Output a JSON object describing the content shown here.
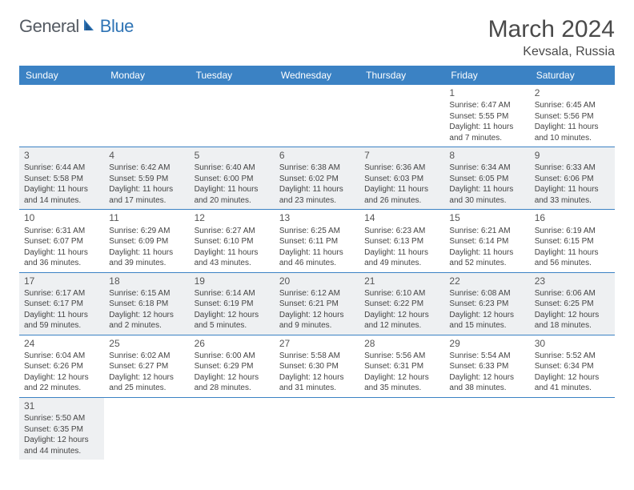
{
  "logo": {
    "word1": "General",
    "word2": "Blue"
  },
  "title": "March 2024",
  "location": "Kevsala, Russia",
  "colors": {
    "header_bg": "#3b82c4",
    "header_text": "#ffffff",
    "shade_bg": "#eef0f2",
    "row_border": "#3b82c4",
    "logo_gray": "#555b63",
    "logo_blue": "#2f74b5",
    "page_bg": "#ffffff"
  },
  "weekdays": [
    "Sunday",
    "Monday",
    "Tuesday",
    "Wednesday",
    "Thursday",
    "Friday",
    "Saturday"
  ],
  "weeks": [
    {
      "shade": false,
      "days": [
        null,
        null,
        null,
        null,
        null,
        {
          "n": "1",
          "sr": "Sunrise: 6:47 AM",
          "ss": "Sunset: 5:55 PM",
          "d1": "Daylight: 11 hours",
          "d2": "and 7 minutes."
        },
        {
          "n": "2",
          "sr": "Sunrise: 6:45 AM",
          "ss": "Sunset: 5:56 PM",
          "d1": "Daylight: 11 hours",
          "d2": "and 10 minutes."
        }
      ]
    },
    {
      "shade": true,
      "days": [
        {
          "n": "3",
          "sr": "Sunrise: 6:44 AM",
          "ss": "Sunset: 5:58 PM",
          "d1": "Daylight: 11 hours",
          "d2": "and 14 minutes."
        },
        {
          "n": "4",
          "sr": "Sunrise: 6:42 AM",
          "ss": "Sunset: 5:59 PM",
          "d1": "Daylight: 11 hours",
          "d2": "and 17 minutes."
        },
        {
          "n": "5",
          "sr": "Sunrise: 6:40 AM",
          "ss": "Sunset: 6:00 PM",
          "d1": "Daylight: 11 hours",
          "d2": "and 20 minutes."
        },
        {
          "n": "6",
          "sr": "Sunrise: 6:38 AM",
          "ss": "Sunset: 6:02 PM",
          "d1": "Daylight: 11 hours",
          "d2": "and 23 minutes."
        },
        {
          "n": "7",
          "sr": "Sunrise: 6:36 AM",
          "ss": "Sunset: 6:03 PM",
          "d1": "Daylight: 11 hours",
          "d2": "and 26 minutes."
        },
        {
          "n": "8",
          "sr": "Sunrise: 6:34 AM",
          "ss": "Sunset: 6:05 PM",
          "d1": "Daylight: 11 hours",
          "d2": "and 30 minutes."
        },
        {
          "n": "9",
          "sr": "Sunrise: 6:33 AM",
          "ss": "Sunset: 6:06 PM",
          "d1": "Daylight: 11 hours",
          "d2": "and 33 minutes."
        }
      ]
    },
    {
      "shade": false,
      "days": [
        {
          "n": "10",
          "sr": "Sunrise: 6:31 AM",
          "ss": "Sunset: 6:07 PM",
          "d1": "Daylight: 11 hours",
          "d2": "and 36 minutes."
        },
        {
          "n": "11",
          "sr": "Sunrise: 6:29 AM",
          "ss": "Sunset: 6:09 PM",
          "d1": "Daylight: 11 hours",
          "d2": "and 39 minutes."
        },
        {
          "n": "12",
          "sr": "Sunrise: 6:27 AM",
          "ss": "Sunset: 6:10 PM",
          "d1": "Daylight: 11 hours",
          "d2": "and 43 minutes."
        },
        {
          "n": "13",
          "sr": "Sunrise: 6:25 AM",
          "ss": "Sunset: 6:11 PM",
          "d1": "Daylight: 11 hours",
          "d2": "and 46 minutes."
        },
        {
          "n": "14",
          "sr": "Sunrise: 6:23 AM",
          "ss": "Sunset: 6:13 PM",
          "d1": "Daylight: 11 hours",
          "d2": "and 49 minutes."
        },
        {
          "n": "15",
          "sr": "Sunrise: 6:21 AM",
          "ss": "Sunset: 6:14 PM",
          "d1": "Daylight: 11 hours",
          "d2": "and 52 minutes."
        },
        {
          "n": "16",
          "sr": "Sunrise: 6:19 AM",
          "ss": "Sunset: 6:15 PM",
          "d1": "Daylight: 11 hours",
          "d2": "and 56 minutes."
        }
      ]
    },
    {
      "shade": true,
      "days": [
        {
          "n": "17",
          "sr": "Sunrise: 6:17 AM",
          "ss": "Sunset: 6:17 PM",
          "d1": "Daylight: 11 hours",
          "d2": "and 59 minutes."
        },
        {
          "n": "18",
          "sr": "Sunrise: 6:15 AM",
          "ss": "Sunset: 6:18 PM",
          "d1": "Daylight: 12 hours",
          "d2": "and 2 minutes."
        },
        {
          "n": "19",
          "sr": "Sunrise: 6:14 AM",
          "ss": "Sunset: 6:19 PM",
          "d1": "Daylight: 12 hours",
          "d2": "and 5 minutes."
        },
        {
          "n": "20",
          "sr": "Sunrise: 6:12 AM",
          "ss": "Sunset: 6:21 PM",
          "d1": "Daylight: 12 hours",
          "d2": "and 9 minutes."
        },
        {
          "n": "21",
          "sr": "Sunrise: 6:10 AM",
          "ss": "Sunset: 6:22 PM",
          "d1": "Daylight: 12 hours",
          "d2": "and 12 minutes."
        },
        {
          "n": "22",
          "sr": "Sunrise: 6:08 AM",
          "ss": "Sunset: 6:23 PM",
          "d1": "Daylight: 12 hours",
          "d2": "and 15 minutes."
        },
        {
          "n": "23",
          "sr": "Sunrise: 6:06 AM",
          "ss": "Sunset: 6:25 PM",
          "d1": "Daylight: 12 hours",
          "d2": "and 18 minutes."
        }
      ]
    },
    {
      "shade": false,
      "days": [
        {
          "n": "24",
          "sr": "Sunrise: 6:04 AM",
          "ss": "Sunset: 6:26 PM",
          "d1": "Daylight: 12 hours",
          "d2": "and 22 minutes."
        },
        {
          "n": "25",
          "sr": "Sunrise: 6:02 AM",
          "ss": "Sunset: 6:27 PM",
          "d1": "Daylight: 12 hours",
          "d2": "and 25 minutes."
        },
        {
          "n": "26",
          "sr": "Sunrise: 6:00 AM",
          "ss": "Sunset: 6:29 PM",
          "d1": "Daylight: 12 hours",
          "d2": "and 28 minutes."
        },
        {
          "n": "27",
          "sr": "Sunrise: 5:58 AM",
          "ss": "Sunset: 6:30 PM",
          "d1": "Daylight: 12 hours",
          "d2": "and 31 minutes."
        },
        {
          "n": "28",
          "sr": "Sunrise: 5:56 AM",
          "ss": "Sunset: 6:31 PM",
          "d1": "Daylight: 12 hours",
          "d2": "and 35 minutes."
        },
        {
          "n": "29",
          "sr": "Sunrise: 5:54 AM",
          "ss": "Sunset: 6:33 PM",
          "d1": "Daylight: 12 hours",
          "d2": "and 38 minutes."
        },
        {
          "n": "30",
          "sr": "Sunrise: 5:52 AM",
          "ss": "Sunset: 6:34 PM",
          "d1": "Daylight: 12 hours",
          "d2": "and 41 minutes."
        }
      ]
    },
    {
      "shade": true,
      "days": [
        {
          "n": "31",
          "sr": "Sunrise: 5:50 AM",
          "ss": "Sunset: 6:35 PM",
          "d1": "Daylight: 12 hours",
          "d2": "and 44 minutes."
        },
        null,
        null,
        null,
        null,
        null,
        null
      ]
    }
  ]
}
